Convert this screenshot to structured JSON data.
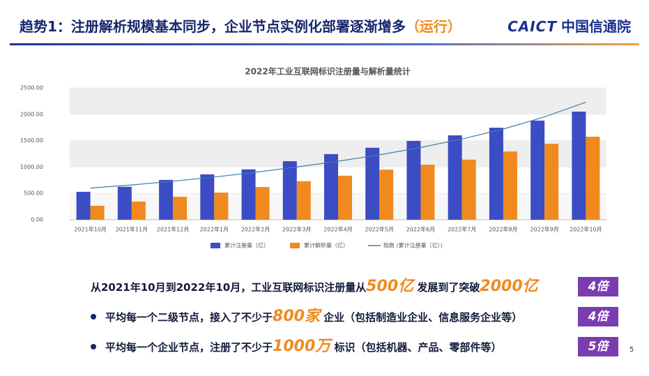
{
  "header": {
    "title": "趋势1：注册解析规模基本同步，企业节点实例化部署逐渐增多",
    "title_suffix": "（运行）",
    "logo_mark": "CAICT",
    "logo_name": "中国信通院"
  },
  "chart_data": {
    "type": "bar",
    "title": "2022年工业互联网标识注册量与解析量统计",
    "categories": [
      "2021年10月",
      "2021年11月",
      "2021年12月",
      "2022年1月",
      "2022年2月",
      "2022年3月",
      "2022年4月",
      "2022年5月",
      "2022年6月",
      "2022年7月",
      "2022年8月",
      "2022年9月",
      "2022年10月"
    ],
    "series": [
      {
        "name": "累计注册量（亿）",
        "color": "#3b4cc4",
        "values": [
          530,
          625,
          755,
          860,
          955,
          1110,
          1245,
          1365,
          1495,
          1600,
          1745,
          1880,
          2050
        ]
      },
      {
        "name": "累计解析量（亿）",
        "color": "#f08a1e",
        "values": [
          265,
          345,
          435,
          515,
          620,
          730,
          835,
          950,
          1045,
          1140,
          1295,
          1440,
          1575
        ]
      },
      {
        "name": "指数 (累计注册量（亿）)",
        "color": "#3f7fa8",
        "type": "line",
        "values": [
          600,
          660,
          730,
          810,
          900,
          1000,
          1110,
          1230,
          1370,
          1530,
          1720,
          1950,
          2230
        ]
      }
    ],
    "ylim": [
      0,
      2500
    ],
    "yticks": [
      {
        "value": 0,
        "label": "0.00"
      },
      {
        "value": 500,
        "label": "500.00"
      },
      {
        "value": 1000,
        "label": "1000.00"
      },
      {
        "value": 1500,
        "label": "1500.00"
      },
      {
        "value": 2000,
        "label": "2000.00"
      },
      {
        "value": 2500,
        "label": "2500.00"
      }
    ],
    "banded": true
  },
  "highlights": [
    {
      "parts": [
        "从2021年10月到2022年10月，工业互联网标识注册量从",
        "500亿",
        " 发展到了突破",
        "2000亿"
      ],
      "badge": "4倍"
    },
    {
      "parts": [
        "平均每一个二级节点，接入了不少于",
        "800家",
        " 企业（包括制造业企业、信息服务企业等）"
      ],
      "badge": "4倍"
    },
    {
      "parts": [
        "平均每一个企业节点，注册了不少于",
        "1000万",
        " 标识（包括机器、产品、零部件等）"
      ],
      "badge": "5倍"
    }
  ],
  "page_number": "5"
}
